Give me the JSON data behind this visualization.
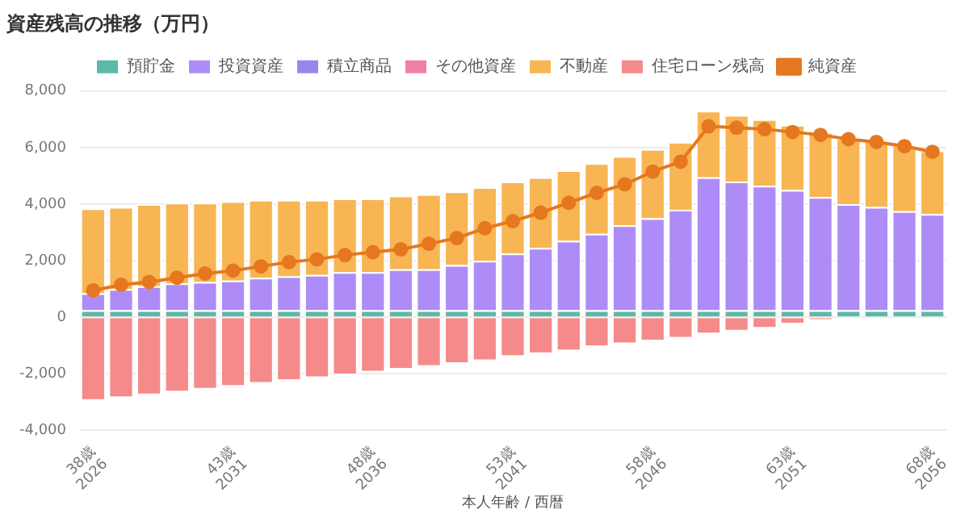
{
  "chart_data": {
    "type": "bar",
    "title": "資産残高の推移（万円）",
    "xlabel": "本人年齢 / 西暦",
    "categories": [
      "38歳\n2026",
      null,
      null,
      null,
      null,
      "43歳\n2031",
      null,
      null,
      null,
      null,
      "48歳\n2036",
      null,
      null,
      null,
      null,
      "53歳\n2041",
      null,
      null,
      null,
      null,
      "58歳\n2046",
      null,
      null,
      null,
      null,
      "63歳\n2051",
      null,
      null,
      null,
      null,
      "68歳\n2056"
    ],
    "stacked": true,
    "ylim": [
      -4000,
      8000
    ],
    "yticks": [
      {
        "value": -4000,
        "label": "-4,000"
      },
      {
        "value": -2000,
        "label": "-2,000"
      },
      0,
      {
        "value": 2000,
        "label": "2,000"
      },
      {
        "value": 4000,
        "label": "4,000"
      },
      {
        "value": 6000,
        "label": "6,000"
      },
      {
        "value": 8000,
        "label": "8,000"
      }
    ],
    "grid": "y",
    "legend": "top",
    "series": [
      {
        "name": "預貯金",
        "color": "#5cb8a8",
        "values": [
          250,
          250,
          250,
          250,
          250,
          250,
          250,
          250,
          250,
          250,
          250,
          250,
          250,
          250,
          250,
          250,
          250,
          250,
          250,
          250,
          250,
          250,
          250,
          250,
          250,
          250,
          250,
          250,
          250,
          250,
          250
        ]
      },
      {
        "name": "投資資産",
        "color": "#ad8cf7",
        "values": [
          600,
          750,
          850,
          950,
          1000,
          1050,
          1150,
          1200,
          1250,
          1350,
          1350,
          1450,
          1450,
          1600,
          1750,
          2000,
          2200,
          2450,
          2700,
          3000,
          3250,
          3550,
          4700,
          4550,
          4400,
          4250,
          4000,
          3750,
          3650,
          3500,
          3400
        ]
      },
      {
        "name": "積立商品",
        "color": "#9a86ea",
        "values": [
          0,
          0,
          0,
          0,
          0,
          0,
          0,
          0,
          0,
          0,
          0,
          0,
          0,
          0,
          0,
          0,
          0,
          0,
          0,
          0,
          0,
          0,
          0,
          0,
          0,
          0,
          0,
          0,
          0,
          0,
          0
        ]
      },
      {
        "name": "その他資産",
        "color": "#f27fa6",
        "values": [
          0,
          0,
          0,
          0,
          0,
          0,
          0,
          0,
          0,
          0,
          0,
          0,
          0,
          0,
          0,
          0,
          0,
          0,
          0,
          0,
          0,
          0,
          0,
          0,
          0,
          0,
          0,
          0,
          0,
          0,
          0
        ]
      },
      {
        "name": "不動産",
        "color": "#f8b553",
        "values": [
          3000,
          2900,
          2900,
          2850,
          2800,
          2800,
          2750,
          2700,
          2650,
          2600,
          2600,
          2600,
          2650,
          2600,
          2600,
          2550,
          2500,
          2500,
          2500,
          2450,
          2450,
          2400,
          2350,
          2350,
          2350,
          2300,
          2300,
          2350,
          2350,
          2350,
          2250
        ]
      },
      {
        "name": "住宅ローン残高",
        "color": "#f58a8a",
        "values": [
          -2950,
          -2850,
          -2750,
          -2650,
          -2550,
          -2450,
          -2350,
          -2250,
          -2150,
          -2050,
          -1950,
          -1850,
          -1750,
          -1650,
          -1550,
          -1400,
          -1300,
          -1200,
          -1050,
          -950,
          -850,
          -750,
          -600,
          -500,
          -400,
          -250,
          -100,
          0,
          0,
          0,
          0
        ]
      },
      {
        "name": "純資産",
        "type": "line",
        "color": "#e5781f",
        "marker": "circle",
        "values": [
          950,
          1150,
          1250,
          1400,
          1550,
          1650,
          1800,
          1950,
          2050,
          2200,
          2300,
          2400,
          2600,
          2800,
          3150,
          3400,
          3700,
          4050,
          4400,
          4700,
          5150,
          5500,
          6750,
          6700,
          6650,
          6550,
          6450,
          6300,
          6200,
          6050,
          5850
        ]
      }
    ]
  }
}
